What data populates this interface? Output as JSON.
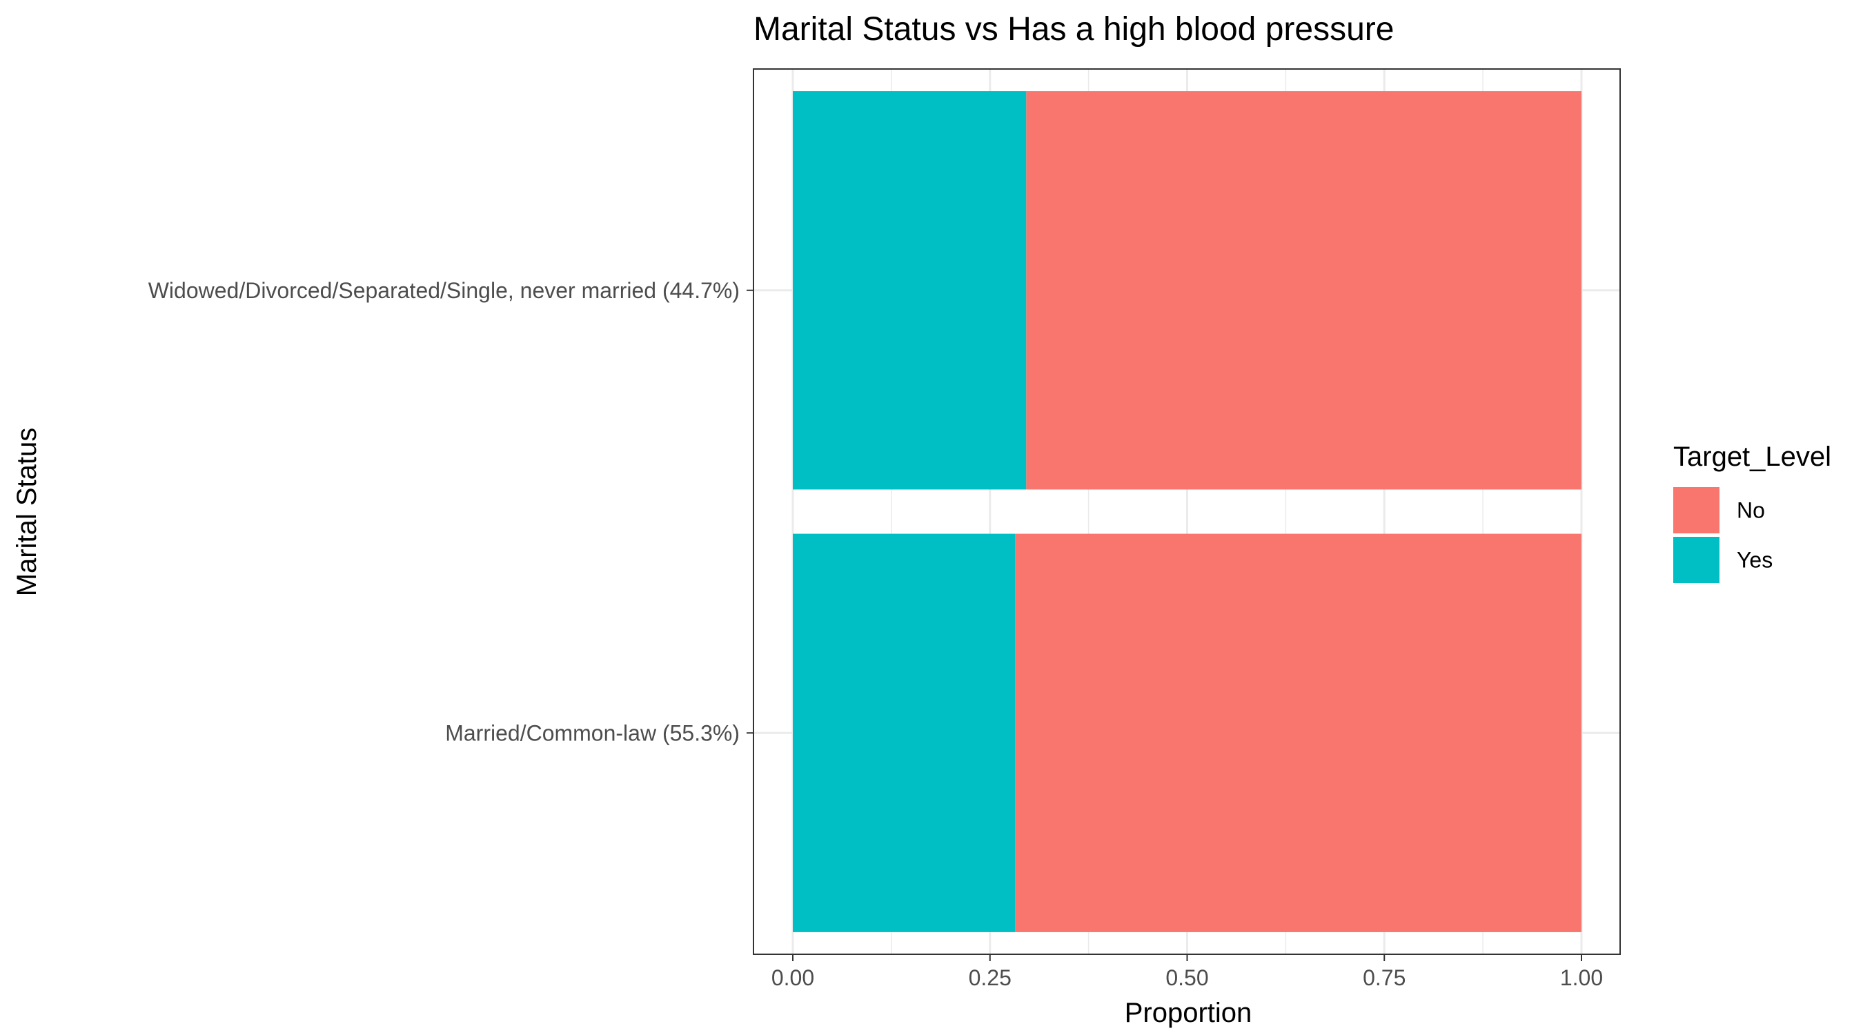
{
  "chart_data": {
    "type": "bar",
    "orientation": "horizontal",
    "stacked": true,
    "title": "Marital Status vs Has a high blood pressure",
    "xlabel": "Proportion",
    "ylabel": "Marital Status",
    "xlim": [
      0,
      1
    ],
    "x_ticks": [
      "0.00",
      "0.25",
      "0.50",
      "0.75",
      "1.00"
    ],
    "x_tick_values": [
      0,
      0.25,
      0.5,
      0.75,
      1
    ],
    "grid": true,
    "categories": [
      "Widowed/Divorced/Separated/Single, never married (44.7%)",
      "Married/Common-law (55.3%)"
    ],
    "series": [
      {
        "name": "Yes",
        "color": "#00BFC4",
        "values": [
          0.296,
          0.282
        ]
      },
      {
        "name": "No",
        "color": "#F8766D",
        "values": [
          0.704,
          0.718
        ]
      }
    ],
    "legend": {
      "title": "Target_Level",
      "position": "right",
      "entries": [
        {
          "label": "No",
          "color": "#F8766D"
        },
        {
          "label": "Yes",
          "color": "#00BFC4"
        }
      ]
    }
  }
}
